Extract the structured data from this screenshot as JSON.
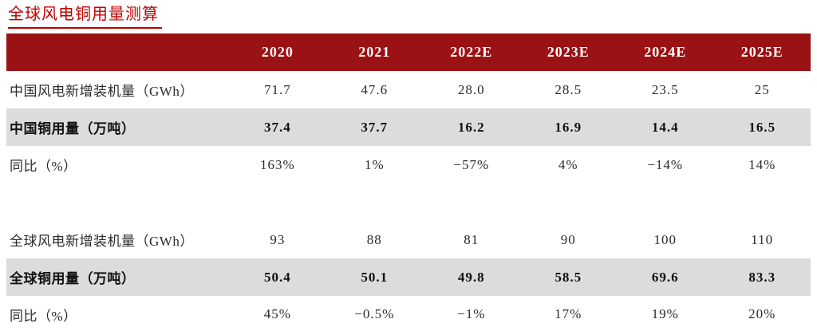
{
  "title": "全球风电铜用量测算",
  "colors": {
    "header_bg": "#9b1214",
    "title_red": "#c00000",
    "highlight_row_bg": "#dcdcdc",
    "header_text": "#ffffff"
  },
  "chart_data": {
    "type": "table",
    "title": "全球风电铜用量测算",
    "columns": [
      "2020",
      "2021",
      "2022E",
      "2023E",
      "2024E",
      "2025E"
    ],
    "rows": [
      {
        "label": "中国风电新增装机量（GWh）",
        "style": "normal",
        "values": [
          "71.7",
          "47.6",
          "28.0",
          "28.5",
          "23.5",
          "25"
        ]
      },
      {
        "label": "中国铜用量（万吨）",
        "style": "highlight",
        "values": [
          "37.4",
          "37.7",
          "16.2",
          "16.9",
          "14.4",
          "16.5"
        ]
      },
      {
        "label": "同比（%）",
        "style": "normal",
        "values": [
          "163%",
          "1%",
          "−57%",
          "4%",
          "−14%",
          "14%"
        ]
      },
      {
        "label": "",
        "style": "spacer",
        "values": [
          "",
          "",
          "",
          "",
          "",
          ""
        ]
      },
      {
        "label": "全球风电新增装机量（GWh）",
        "style": "normal",
        "values": [
          "93",
          "88",
          "81",
          "90",
          "100",
          "110"
        ]
      },
      {
        "label": "全球铜用量（万吨）",
        "style": "highlight",
        "values": [
          "50.4",
          "50.1",
          "49.8",
          "58.5",
          "69.6",
          "83.3"
        ]
      },
      {
        "label": "同比（%）",
        "style": "normal",
        "values": [
          "45%",
          "−0.5%",
          "−1%",
          "17%",
          "19%",
          "20%"
        ]
      }
    ]
  }
}
